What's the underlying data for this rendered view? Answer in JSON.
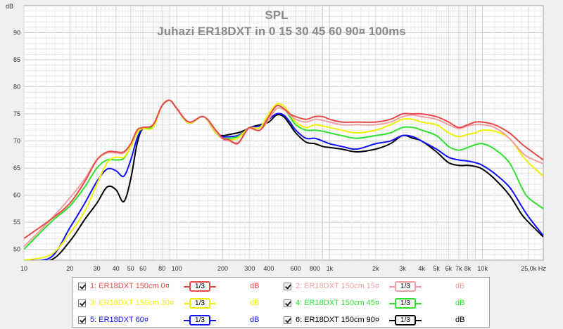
{
  "chart_data": {
    "type": "line",
    "title": "SPL",
    "subtitle": "Juhazi ER18DXT in 0 15 30 45 60 90¤ 100ms",
    "ylabel": "dB",
    "xlabel": "Hz",
    "x_scale": "log",
    "xlim": [
      10,
      25000
    ],
    "ylim": [
      48,
      95
    ],
    "yticks": [
      50,
      55,
      60,
      65,
      70,
      75,
      80,
      85,
      90
    ],
    "xticks": [
      {
        "value": 10,
        "label": "10"
      },
      {
        "value": 20,
        "label": "20"
      },
      {
        "value": 30,
        "label": "30"
      },
      {
        "value": 40,
        "label": "40"
      },
      {
        "value": 50,
        "label": "50"
      },
      {
        "value": 60,
        "label": "60"
      },
      {
        "value": 80,
        "label": "80"
      },
      {
        "value": 100,
        "label": "100"
      },
      {
        "value": 200,
        "label": "200"
      },
      {
        "value": 300,
        "label": "300"
      },
      {
        "value": 400,
        "label": "400"
      },
      {
        "value": 600,
        "label": "600"
      },
      {
        "value": 800,
        "label": "800"
      },
      {
        "value": 1000,
        "label": "1k"
      },
      {
        "value": 2000,
        "label": "2k"
      },
      {
        "value": 3000,
        "label": "3k"
      },
      {
        "value": 4000,
        "label": "4k"
      },
      {
        "value": 5000,
        "label": "5k"
      },
      {
        "value": 6000,
        "label": "6k"
      },
      {
        "value": 7000,
        "label": "7k"
      },
      {
        "value": 8000,
        "label": "8k"
      },
      {
        "value": 10000,
        "label": "10k"
      },
      {
        "value": 25000,
        "label": "25,0k Hz"
      }
    ],
    "grid": true,
    "legend": "bottom",
    "series": [
      {
        "name": "1: ER18DXT 150cm 0¤",
        "color": "#e84a4a",
        "smoothing": "1/3",
        "unit": "dB",
        "x": [
          10,
          15,
          20,
          25,
          30,
          35,
          40,
          45,
          50,
          55,
          60,
          70,
          80,
          90,
          100,
          120,
          150,
          180,
          200,
          220,
          250,
          280,
          300,
          350,
          400,
          450,
          500,
          550,
          600,
          700,
          800,
          900,
          1000,
          1200,
          1500,
          2000,
          2500,
          3000,
          3500,
          4000,
          5000,
          6000,
          7000,
          8000,
          9000,
          10000,
          12000,
          15000,
          18000,
          20000,
          25000
        ],
        "y": [
          52.0,
          55.5,
          58.5,
          62.5,
          66.5,
          68.0,
          68.0,
          68.0,
          69.5,
          72.0,
          72.5,
          73.0,
          76.5,
          77.5,
          76.0,
          73.5,
          74.5,
          72.0,
          70.5,
          70.2,
          69.5,
          71.5,
          72.5,
          72.0,
          74.5,
          76.5,
          76.0,
          75.0,
          74.5,
          74.0,
          74.5,
          74.5,
          74.0,
          73.5,
          73.5,
          73.5,
          74.0,
          75.0,
          75.0,
          75.0,
          74.5,
          73.5,
          72.5,
          73.0,
          73.5,
          73.5,
          73.0,
          71.5,
          69.5,
          68.5,
          66.5
        ]
      },
      {
        "name": "2: ER18DXT 150cm 15¤",
        "color": "#f0a0a0",
        "smoothing": "1/3",
        "unit": "dB",
        "x": [
          10,
          15,
          20,
          25,
          30,
          35,
          40,
          45,
          50,
          55,
          60,
          70,
          80,
          90,
          100,
          120,
          150,
          180,
          200,
          220,
          250,
          280,
          300,
          350,
          400,
          450,
          500,
          550,
          600,
          700,
          800,
          900,
          1000,
          1200,
          1500,
          2000,
          2500,
          3000,
          3500,
          4000,
          5000,
          6000,
          7000,
          8000,
          9000,
          10000,
          12000,
          15000,
          18000,
          20000,
          25000
        ],
        "y": [
          50.5,
          55.5,
          59.5,
          63.0,
          66.5,
          67.8,
          67.8,
          67.8,
          69.5,
          72.0,
          72.5,
          73.0,
          76.5,
          77.5,
          76.0,
          73.5,
          74.5,
          71.8,
          70.3,
          70.0,
          69.7,
          71.5,
          72.3,
          72.0,
          74.0,
          76.0,
          75.8,
          74.8,
          74.0,
          73.5,
          74.0,
          73.8,
          73.5,
          73.0,
          73.0,
          73.0,
          73.5,
          74.5,
          74.8,
          74.5,
          74.0,
          73.0,
          72.3,
          72.8,
          73.0,
          73.0,
          72.5,
          70.5,
          68.0,
          67.0,
          65.8
        ]
      },
      {
        "name": "3: ER18DXT 150cm 30¤",
        "color": "#f0f000",
        "smoothing": "1/3",
        "unit": "dB",
        "x": [
          10,
          15,
          20,
          25,
          30,
          35,
          40,
          45,
          50,
          55,
          60,
          70,
          80,
          90,
          100,
          120,
          150,
          180,
          200,
          220,
          250,
          280,
          300,
          350,
          400,
          450,
          500,
          550,
          600,
          700,
          800,
          900,
          1000,
          1200,
          1500,
          2000,
          2500,
          3000,
          3500,
          4000,
          5000,
          6000,
          7000,
          8000,
          9000,
          10000,
          12000,
          15000,
          18000,
          20000,
          25000
        ],
        "y": [
          48.0,
          49.0,
          53.0,
          57.0,
          62.0,
          66.0,
          67.0,
          67.0,
          69.0,
          71.5,
          72.3,
          72.5,
          76.5,
          77.5,
          76.0,
          73.3,
          74.5,
          71.5,
          70.5,
          70.2,
          70.5,
          71.8,
          72.5,
          72.5,
          75.0,
          76.8,
          76.5,
          75.0,
          73.5,
          72.5,
          73.0,
          72.8,
          72.5,
          72.0,
          71.5,
          72.0,
          73.0,
          74.0,
          74.0,
          73.5,
          73.0,
          71.5,
          70.8,
          71.2,
          71.5,
          72.0,
          71.8,
          70.5,
          67.5,
          66.0,
          63.5
        ]
      },
      {
        "name": "4: ER18DXT 150cm 45¤",
        "color": "#30e030",
        "smoothing": "1/3",
        "unit": "dB",
        "x": [
          10,
          15,
          20,
          25,
          30,
          35,
          40,
          45,
          50,
          55,
          60,
          70,
          80,
          90,
          100,
          120,
          150,
          180,
          200,
          220,
          250,
          280,
          300,
          350,
          400,
          450,
          500,
          550,
          600,
          700,
          800,
          900,
          1000,
          1200,
          1500,
          2000,
          2500,
          3000,
          3500,
          4000,
          5000,
          6000,
          7000,
          8000,
          9000,
          10000,
          12000,
          15000,
          18000,
          20000,
          25000
        ],
        "y": [
          50.0,
          55.0,
          58.0,
          61.5,
          65.0,
          66.5,
          66.5,
          66.8,
          69.0,
          71.5,
          72.3,
          72.8,
          76.5,
          77.5,
          76.0,
          73.3,
          74.5,
          71.5,
          70.5,
          70.5,
          70.8,
          71.8,
          72.5,
          72.5,
          75.0,
          76.5,
          76.0,
          74.5,
          73.0,
          72.0,
          72.0,
          71.8,
          71.5,
          71.0,
          70.5,
          71.0,
          71.5,
          72.5,
          72.5,
          72.0,
          71.0,
          69.0,
          68.3,
          68.8,
          69.3,
          69.5,
          68.5,
          66.0,
          61.5,
          59.5,
          57.5
        ]
      },
      {
        "name": "5: ER18DXT 60¤",
        "color": "#1010ff",
        "smoothing": "1/3",
        "unit": "dB",
        "x": [
          10,
          15,
          20,
          25,
          30,
          35,
          40,
          45,
          50,
          55,
          60,
          70,
          80,
          90,
          100,
          120,
          150,
          180,
          200,
          220,
          250,
          280,
          300,
          350,
          400,
          450,
          500,
          550,
          600,
          700,
          800,
          900,
          1000,
          1200,
          1500,
          2000,
          2500,
          3000,
          3500,
          4000,
          5000,
          6000,
          7000,
          8000,
          9000,
          10000,
          12000,
          15000,
          18000,
          20000,
          25000
        ],
        "y": [
          48.0,
          48.5,
          54.0,
          58.5,
          62.5,
          64.8,
          64.5,
          63.5,
          66.5,
          70.5,
          72.3,
          72.8,
          76.5,
          77.5,
          76.0,
          73.3,
          74.5,
          71.5,
          70.8,
          70.8,
          71.0,
          71.8,
          72.5,
          72.8,
          74.0,
          75.0,
          74.8,
          73.5,
          72.0,
          70.5,
          70.5,
          70.0,
          69.5,
          69.0,
          68.5,
          69.5,
          70.0,
          71.0,
          70.8,
          70.0,
          68.5,
          67.0,
          66.5,
          66.3,
          66.0,
          65.5,
          64.0,
          61.5,
          58.0,
          56.0,
          52.5
        ]
      },
      {
        "name": "6: ER18DXT 150cm 90¤",
        "color": "#000000",
        "smoothing": "1/3",
        "unit": "dB",
        "x": [
          10,
          15,
          20,
          25,
          30,
          35,
          40,
          45,
          50,
          55,
          60,
          70,
          80,
          90,
          100,
          120,
          150,
          180,
          200,
          220,
          250,
          280,
          300,
          350,
          400,
          450,
          500,
          550,
          600,
          700,
          800,
          900,
          1000,
          1200,
          1500,
          2000,
          2500,
          3000,
          3500,
          4000,
          5000,
          6000,
          7000,
          8000,
          9000,
          10000,
          12000,
          15000,
          18000,
          20000,
          25000
        ],
        "y": [
          48.0,
          48.0,
          51.5,
          55.5,
          58.5,
          61.5,
          61.0,
          58.8,
          63.0,
          69.5,
          72.3,
          72.8,
          76.5,
          77.5,
          76.0,
          73.3,
          74.5,
          71.5,
          71.0,
          71.2,
          71.5,
          72.0,
          72.5,
          73.0,
          73.5,
          74.8,
          74.5,
          73.0,
          71.5,
          69.8,
          69.5,
          69.0,
          68.8,
          68.5,
          68.0,
          68.5,
          69.5,
          71.0,
          70.5,
          70.0,
          68.0,
          66.0,
          65.5,
          65.5,
          65.3,
          64.8,
          63.0,
          60.0,
          56.5,
          55.0,
          52.3
        ]
      }
    ]
  },
  "legend": {
    "items": [
      {
        "label": "1: ER18DXT 150cm 0¤",
        "smoothing": "1/3",
        "unit": "dB",
        "color": "#e84a4a"
      },
      {
        "label": "2: ER18DXT 150cm 15¤",
        "smoothing": "1/3",
        "unit": "dB",
        "color": "#f0a0a0"
      },
      {
        "label": "3: ER18DXT 150cm 30¤",
        "smoothing": "1/3",
        "unit": "dB",
        "color": "#f0f000"
      },
      {
        "label": "4: ER18DXT 150cm 45¤",
        "smoothing": "1/3",
        "unit": "dB",
        "color": "#30e030"
      },
      {
        "label": "5: ER18DXT 60¤",
        "smoothing": "1/3",
        "unit": "dB",
        "color": "#1010ff"
      },
      {
        "label": "6: ER18DXT 150cm 90¤",
        "smoothing": "1/3",
        "unit": "dB",
        "color": "#000000"
      }
    ]
  }
}
